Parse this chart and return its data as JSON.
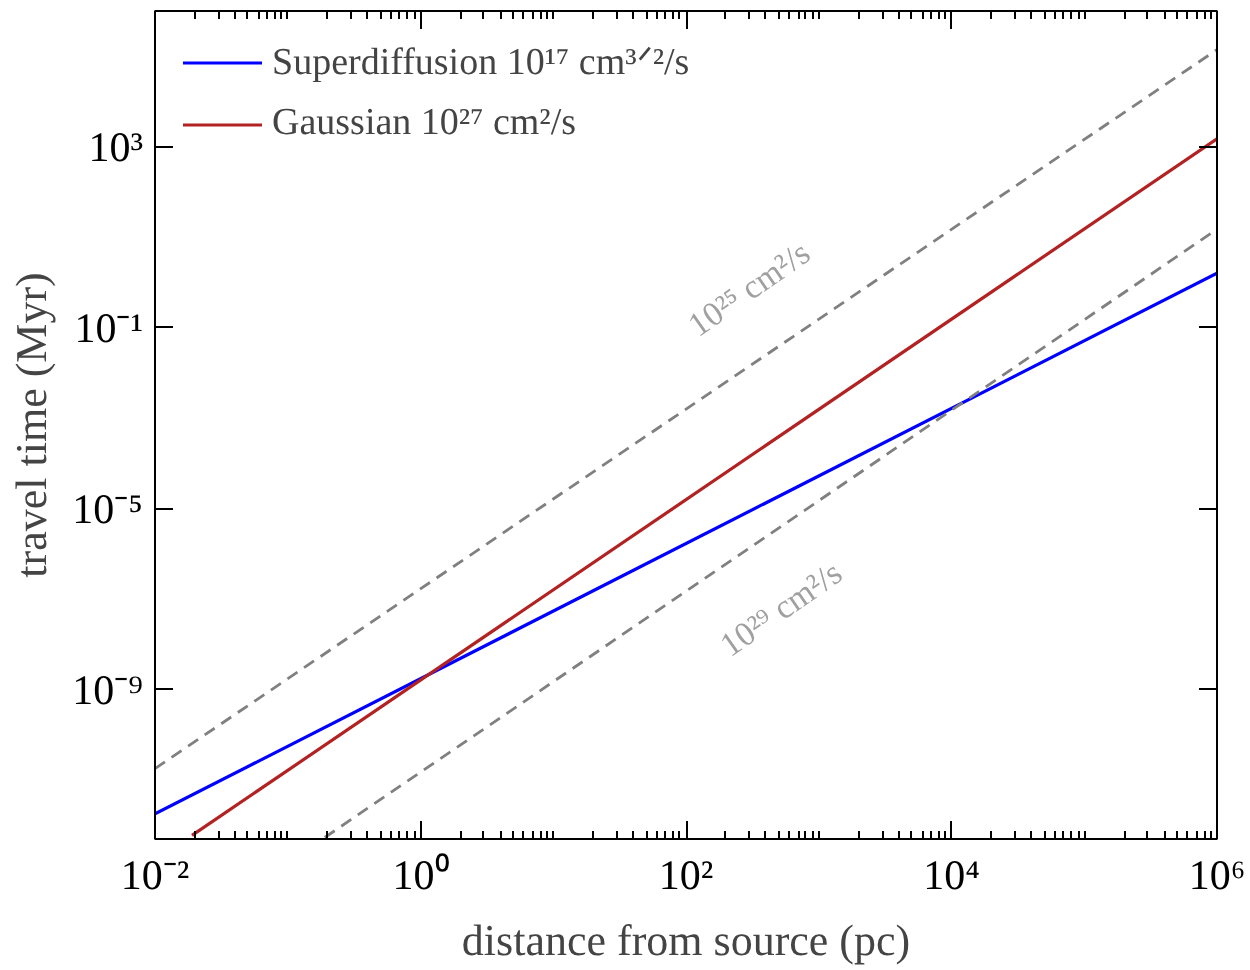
{
  "chart_data": {
    "type": "line",
    "xlabel": "distance from source (pc)",
    "ylabel": "travel time (Myr)",
    "log": "xy",
    "xlim": [
      0.01,
      1000000
    ],
    "ylim": [
      5e-13,
      1000000
    ],
    "xticks": [
      {
        "value": 0.01,
        "label": "10⁻²"
      },
      {
        "value": 1,
        "label": "10⁰"
      },
      {
        "value": 100,
        "label": "10²"
      },
      {
        "value": 10000,
        "label": "10⁴"
      },
      {
        "value": 1000000,
        "label": "10⁶"
      }
    ],
    "yticks": [
      {
        "value": 1e-09,
        "label": "10⁻⁹"
      },
      {
        "value": 1e-05,
        "label": "10⁻⁵"
      },
      {
        "value": 0.1,
        "label": "10⁻¹"
      },
      {
        "value": 1000,
        "label": "10³"
      }
    ],
    "series": [
      {
        "name": "Superdiffusion 10¹⁷ cm³ᐟ²/s",
        "color": "#0000ff",
        "x": [
          0.01,
          1000000
        ],
        "values": [
          1.8e-12,
          1.6
        ]
      },
      {
        "name": "Gaussian 10²⁷ cm²/s",
        "color": "#b22222",
        "x": [
          0.019,
          1000000
        ],
        "values": [
          6e-13,
          1500
        ]
      },
      {
        "color": "#808080",
        "line_style": "dashed",
        "x": [
          0.01,
          1000000
        ],
        "values": [
          1.8e-11,
          140000
        ]
      },
      {
        "color": "#808080",
        "line_style": "dashed",
        "x": [
          0.19,
          1000000
        ],
        "values": [
          5.4e-13,
          15
        ]
      }
    ],
    "annotations": [
      "10²⁵ cm²/s",
      "10²⁹ cm²/s"
    ],
    "legend": "top left",
    "grid": false
  }
}
